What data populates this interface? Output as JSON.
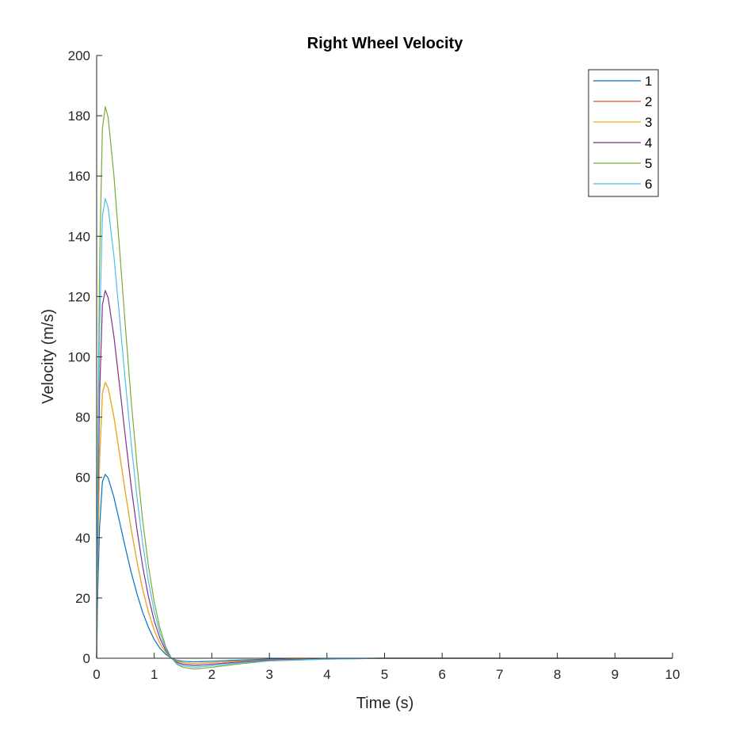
{
  "chart_data": {
    "type": "line",
    "title": "Right Wheel Velocity",
    "xlabel": "Time (s)",
    "ylabel": "Velocity (m/s)",
    "xlim": [
      0,
      10
    ],
    "ylim": [
      0,
      200
    ],
    "xticks": [
      0,
      1,
      2,
      3,
      4,
      5,
      6,
      7,
      8,
      9,
      10
    ],
    "yticks": [
      0,
      20,
      40,
      60,
      80,
      100,
      120,
      140,
      160,
      180,
      200
    ],
    "grid": false,
    "legend_position": "top-right",
    "x": [
      0,
      0.02,
      0.05,
      0.1,
      0.15,
      0.2,
      0.3,
      0.4,
      0.5,
      0.6,
      0.7,
      0.8,
      0.9,
      1.0,
      1.1,
      1.2,
      1.3,
      1.4,
      1.5,
      1.7,
      2.0,
      2.5,
      3,
      4,
      5,
      6,
      7,
      8,
      9,
      10
    ],
    "series": [
      {
        "name": "1",
        "color": "#0072BD",
        "values": [
          0,
          22.1,
          43.3,
          58.6,
          61.0,
          59.8,
          53.4,
          45.1,
          36.6,
          28.5,
          21.4,
          15.2,
          10.2,
          6.2,
          3.3,
          1.3,
          0.0,
          -0.7,
          -1.0,
          -1.2,
          -1.0,
          -0.6,
          -0.3,
          -0.1,
          0,
          0,
          0,
          0,
          0,
          0
        ]
      },
      {
        "name": "2",
        "color": "#D95319",
        "values": [
          0,
          33.1,
          65.0,
          87.9,
          91.5,
          89.7,
          80.1,
          67.6,
          54.9,
          42.8,
          32.1,
          22.8,
          15.3,
          9.3,
          4.9,
          1.9,
          0.0,
          -1.0,
          -1.5,
          -1.8,
          -1.5,
          -0.9,
          -0.5,
          -0.1,
          0,
          0,
          0,
          0,
          0,
          0
        ]
      },
      {
        "name": "3",
        "color": "#EDB120",
        "values": [
          0,
          33.1,
          65.0,
          87.9,
          91.5,
          89.7,
          80.1,
          67.6,
          54.9,
          42.8,
          32.1,
          22.8,
          15.3,
          9.3,
          4.9,
          1.9,
          0.0,
          -1.0,
          -1.5,
          -1.8,
          -1.5,
          -0.9,
          -0.5,
          -0.1,
          0,
          0,
          0,
          0,
          0,
          0
        ]
      },
      {
        "name": "4",
        "color": "#7E2F8E",
        "values": [
          0,
          44.1,
          86.6,
          117.2,
          122.0,
          119.6,
          106.8,
          90.2,
          73.2,
          57.0,
          42.8,
          30.4,
          20.4,
          12.4,
          6.6,
          2.6,
          0.0,
          -1.4,
          -2.0,
          -2.4,
          -2.0,
          -1.2,
          -0.6,
          -0.2,
          0,
          0,
          0,
          0,
          0,
          0
        ]
      },
      {
        "name": "5",
        "color": "#77AC30",
        "values": [
          0,
          66.2,
          129.9,
          175.8,
          183.0,
          179.4,
          160.2,
          135.3,
          109.8,
          85.5,
          64.2,
          45.6,
          30.6,
          18.6,
          9.9,
          3.9,
          0.0,
          -2.1,
          -3.0,
          -3.6,
          -3.0,
          -1.8,
          -0.9,
          -0.3,
          0,
          0,
          0,
          0,
          0,
          0
        ]
      },
      {
        "name": "6",
        "color": "#4DBEEE",
        "values": [
          0,
          55.2,
          108.3,
          146.5,
          152.5,
          149.5,
          133.5,
          112.8,
          91.5,
          71.3,
          53.5,
          38.0,
          25.5,
          15.5,
          8.3,
          3.3,
          0.0,
          -1.8,
          -2.5,
          -3.0,
          -2.5,
          -1.5,
          -0.8,
          -0.3,
          0,
          0,
          0,
          0,
          0,
          0
        ]
      }
    ]
  }
}
